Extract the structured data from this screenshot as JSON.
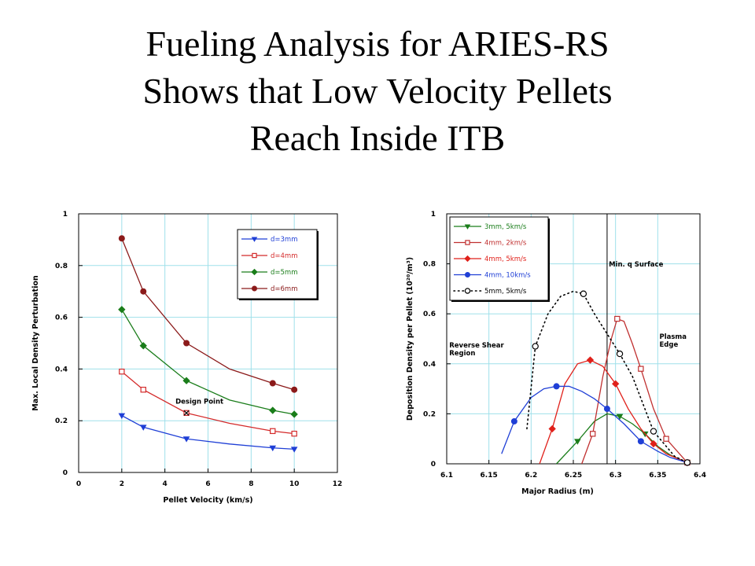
{
  "slide": {
    "title_lines": [
      "Fueling Analysis for ARIES-RS",
      "Shows that Low Velocity Pellets",
      "Reach Inside ITB"
    ]
  },
  "chart_data": [
    {
      "type": "line",
      "xlabel": "Pellet Velocity (km/s)",
      "ylabel": "Max. Local Density Perturbation",
      "xlim": [
        0,
        12
      ],
      "ylim": [
        0,
        1
      ],
      "xticks": [
        "0",
        "2",
        "4",
        "6",
        "8",
        "10",
        "12"
      ],
      "yticks": [
        "0",
        "0.2",
        "0.4",
        "0.6",
        "0.8",
        "1"
      ],
      "grid": true,
      "legend_position": "top-right",
      "series": [
        {
          "name": "d=3mm",
          "color": "#1f3fd6",
          "marker": "triangle-down",
          "open": false,
          "x": [
            2,
            3,
            5,
            7,
            9,
            10
          ],
          "y": [
            0.22,
            0.175,
            0.13,
            0.11,
            0.095,
            0.09
          ],
          "marked": [
            0,
            1,
            2,
            4,
            5
          ]
        },
        {
          "name": "d=4mm",
          "color": "#d42a2a",
          "marker": "square",
          "open": true,
          "x": [
            2,
            3,
            5,
            7,
            9,
            10
          ],
          "y": [
            0.39,
            0.32,
            0.23,
            0.19,
            0.16,
            0.15
          ],
          "marked": [
            0,
            1,
            2,
            4,
            5
          ]
        },
        {
          "name": "d=5mm",
          "color": "#1a7d1a",
          "marker": "diamond",
          "open": false,
          "x": [
            2,
            3,
            5,
            7,
            9,
            10
          ],
          "y": [
            0.63,
            0.49,
            0.355,
            0.28,
            0.24,
            0.225
          ],
          "marked": [
            0,
            1,
            2,
            4,
            5
          ]
        },
        {
          "name": "d=6mm",
          "color": "#8b1a1a",
          "marker": "circle",
          "open": false,
          "x": [
            2,
            3,
            5,
            7,
            9,
            10
          ],
          "y": [
            0.905,
            0.7,
            0.5,
            0.4,
            0.345,
            0.32
          ],
          "marked": [
            0,
            1,
            2,
            4,
            5
          ]
        }
      ],
      "annotations": [
        {
          "text": "Design Point",
          "x": 5,
          "y": 0.26,
          "point_y": 0.23
        }
      ]
    },
    {
      "type": "line",
      "xlabel": "Major Radius (m)",
      "ylabel": "Deposition Density per Pellet (10²⁰/m³)",
      "xlim": [
        6.1,
        6.4
      ],
      "ylim": [
        0,
        1
      ],
      "xticks": [
        "6.1",
        "6.15",
        "6.2",
        "6.25",
        "6.3",
        "6.35",
        "6.4"
      ],
      "yticks": [
        "0",
        "0.2",
        "0.4",
        "0.6",
        "0.8",
        "1"
      ],
      "grid": true,
      "legend_position": "top-left",
      "vertical_line_x": 6.29,
      "series": [
        {
          "name": "3mm, 5km/s",
          "color": "#1a7d1a",
          "marker": "triangle-down",
          "open": false,
          "dashed": false,
          "x": [
            6.23,
            6.255,
            6.275,
            6.29,
            6.305,
            6.32,
            6.335,
            6.35,
            6.365,
            6.385
          ],
          "y": [
            0.0,
            0.09,
            0.17,
            0.2,
            0.19,
            0.16,
            0.12,
            0.07,
            0.035,
            0.005
          ],
          "marked": [
            1,
            4,
            6,
            9
          ]
        },
        {
          "name": "4mm, 2km/s",
          "color": "#c03030",
          "marker": "square",
          "open": true,
          "dashed": false,
          "x": [
            6.26,
            6.273,
            6.285,
            6.295,
            6.302,
            6.31,
            6.32,
            6.33,
            6.345,
            6.36,
            6.385
          ],
          "y": [
            0.0,
            0.12,
            0.35,
            0.5,
            0.58,
            0.57,
            0.48,
            0.38,
            0.22,
            0.1,
            0.005
          ],
          "marked": [
            1,
            4,
            7,
            9,
            10
          ]
        },
        {
          "name": "4mm, 5km/s",
          "color": "#e0201a",
          "marker": "diamond",
          "open": false,
          "dashed": false,
          "x": [
            6.21,
            6.225,
            6.24,
            6.255,
            6.27,
            6.285,
            6.3,
            6.315,
            6.33,
            6.345,
            6.36,
            6.385
          ],
          "y": [
            0.0,
            0.14,
            0.32,
            0.4,
            0.415,
            0.39,
            0.32,
            0.22,
            0.14,
            0.08,
            0.04,
            0.005
          ],
          "marked": [
            1,
            4,
            6,
            9,
            11
          ]
        },
        {
          "name": "4mm, 10km/s",
          "color": "#1f3fd6",
          "marker": "circle",
          "open": false,
          "dashed": false,
          "x": [
            6.165,
            6.18,
            6.2,
            6.215,
            6.23,
            6.245,
            6.26,
            6.275,
            6.29,
            6.31,
            6.33,
            6.35,
            6.365,
            6.385
          ],
          "y": [
            0.04,
            0.17,
            0.265,
            0.3,
            0.31,
            0.31,
            0.29,
            0.26,
            0.22,
            0.16,
            0.09,
            0.05,
            0.025,
            0.005
          ],
          "marked": [
            1,
            4,
            8,
            10,
            13
          ]
        },
        {
          "name": "5mm, 5km/s",
          "color": "#000000",
          "marker": "circle",
          "open": true,
          "dashed": true,
          "x": [
            6.195,
            6.205,
            6.22,
            6.235,
            6.25,
            6.262,
            6.275,
            6.29,
            6.305,
            6.32,
            6.345,
            6.37,
            6.385
          ],
          "y": [
            0.14,
            0.47,
            0.6,
            0.67,
            0.69,
            0.68,
            0.6,
            0.52,
            0.44,
            0.35,
            0.13,
            0.03,
            0.005
          ],
          "marked": [
            1,
            5,
            8,
            10,
            12
          ]
        }
      ],
      "annotations": [
        {
          "text_lines": [
            "Min. q Surface"
          ],
          "x": 6.292,
          "y": 0.79
        },
        {
          "text_lines": [
            "Reverse  Shear",
            "Region"
          ],
          "x": 6.103,
          "y": 0.465
        },
        {
          "text_lines": [
            "Plasma",
            "Edge"
          ],
          "x": 6.352,
          "y": 0.5
        }
      ]
    }
  ]
}
